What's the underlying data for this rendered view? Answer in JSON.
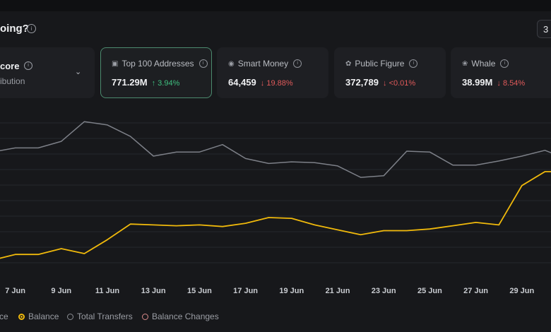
{
  "header": {
    "title": "oing?",
    "corner_label": "3"
  },
  "score_card": {
    "title": "core",
    "subtitle": "ibution"
  },
  "cards": [
    {
      "label": "Top 100 Addresses",
      "value": "771.29M",
      "change": "3.94%",
      "direction": "up",
      "icon": "wallet-icon",
      "active": true
    },
    {
      "label": "Smart Money",
      "value": "64,459",
      "change": "19.88%",
      "direction": "down",
      "icon": "smart-money-icon",
      "active": false
    },
    {
      "label": "Public Figure",
      "value": "372,789",
      "change": "<0.01%",
      "direction": "down",
      "icon": "public-figure-icon",
      "active": false
    },
    {
      "label": "Whale",
      "value": "38.99M",
      "change": "8.54%",
      "direction": "down",
      "icon": "whale-icon",
      "active": false
    }
  ],
  "legend": {
    "items": [
      {
        "label": "ce",
        "color": "#7d8088",
        "state": "partial"
      },
      {
        "label": "Balance",
        "color": "#f0b90b",
        "state": "on"
      },
      {
        "label": "Total Transfers",
        "color": "#8a8d93",
        "state": "off"
      },
      {
        "label": "Balance Changes",
        "color": "#d98a8a",
        "state": "off"
      }
    ]
  },
  "chart_data": {
    "type": "line",
    "x": [
      "6 Jun",
      "7 Jun",
      "8 Jun",
      "9 Jun",
      "10 Jun",
      "11 Jun",
      "12 Jun",
      "13 Jun",
      "14 Jun",
      "15 Jun",
      "16 Jun",
      "17 Jun",
      "18 Jun",
      "19 Jun",
      "20 Jun",
      "21 Jun",
      "22 Jun",
      "23 Jun",
      "24 Jun",
      "25 Jun",
      "26 Jun",
      "27 Jun",
      "28 Jun",
      "29 Jun",
      "30 Jun",
      "1 Jul"
    ],
    "x_ticks": [
      "7 Jun",
      "9 Jun",
      "11 Jun",
      "13 Jun",
      "15 Jun",
      "17 Jun",
      "19 Jun",
      "21 Jun",
      "23 Jun",
      "25 Jun",
      "27 Jun",
      "29 Jun"
    ],
    "series": [
      {
        "color": "#7d8088",
        "values": [
          0.745,
          0.77,
          0.77,
          0.81,
          0.93,
          0.91,
          0.84,
          0.72,
          0.745,
          0.745,
          0.79,
          0.705,
          0.675,
          0.685,
          0.68,
          0.66,
          0.59,
          0.6,
          0.75,
          0.745,
          0.665,
          0.665,
          0.69,
          0.72,
          0.755,
          0.7
        ]
      },
      {
        "name": "Balance",
        "color": "#f0b90b",
        "values": [
          0.085,
          0.12,
          0.12,
          0.155,
          0.125,
          0.21,
          0.305,
          0.3,
          0.295,
          0.3,
          0.29,
          0.31,
          0.345,
          0.34,
          0.3,
          0.27,
          0.24,
          0.265,
          0.265,
          0.275,
          0.295,
          0.315,
          0.3,
          0.54,
          0.625,
          0.625
        ]
      }
    ],
    "ylim": [
      0,
      1
    ],
    "grid": true
  }
}
